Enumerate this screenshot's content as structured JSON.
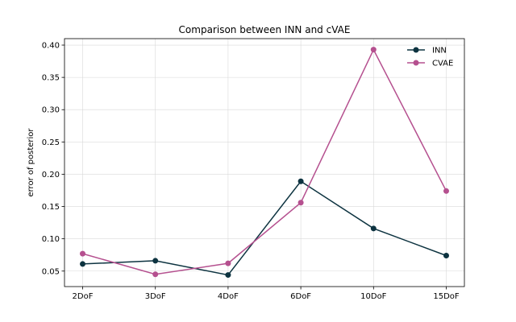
{
  "chart_data": {
    "type": "line",
    "title": "Comparison between INN and cVAE",
    "xlabel": "",
    "ylabel": "error of posterior",
    "categories": [
      "2DoF",
      "3DoF",
      "4DoF",
      "6DoF",
      "10DoF",
      "15DoF"
    ],
    "ylim": [
      0.026,
      0.41
    ],
    "yticks": [
      "0.05",
      "0.10",
      "0.15",
      "0.20",
      "0.25",
      "0.30",
      "0.35",
      "0.40"
    ],
    "grid": true,
    "legend_position": "top-right",
    "series": [
      {
        "name": "INN",
        "color": "#0d3340",
        "values": [
          0.061,
          0.066,
          0.044,
          0.189,
          0.116,
          0.074
        ]
      },
      {
        "name": "CVAE",
        "color": "#b5508f",
        "values": [
          0.077,
          0.045,
          0.062,
          0.156,
          0.393,
          0.174
        ]
      }
    ]
  }
}
